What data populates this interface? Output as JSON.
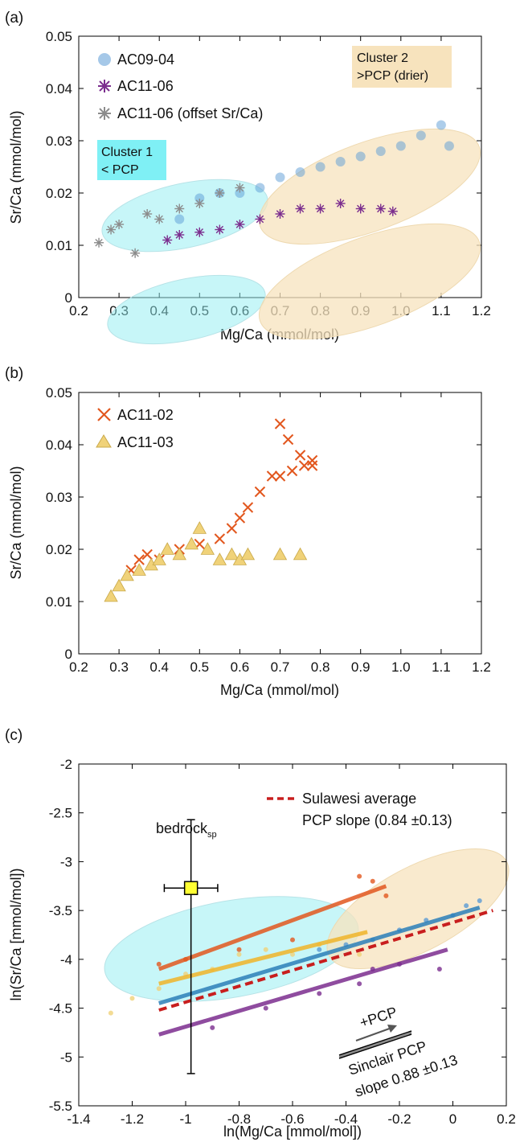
{
  "panels": [
    {
      "panel_label": "(a)",
      "type": "scatter",
      "xlabel": "Mg/Ca (mmol/mol)",
      "ylabel": "Sr/Ca (mmol/mol)",
      "xlim": [
        0.2,
        1.2
      ],
      "ylim": [
        0,
        0.05
      ],
      "xticks": [
        "0.2",
        "0.3",
        "0.4",
        "0.5",
        "0.6",
        "0.7",
        "0.8",
        "0.9",
        "1.0",
        "1.1",
        "1.2"
      ],
      "yticks": [
        "0",
        "0.01",
        "0.02",
        "0.03",
        "0.04",
        "0.05"
      ],
      "series": [
        {
          "name": "AC09-04",
          "marker": "circle",
          "color": "#5b9bd5",
          "x": [
            0.45,
            0.5,
            0.55,
            0.6,
            0.65,
            0.7,
            0.75,
            0.8,
            0.85,
            0.9,
            0.95,
            1.0,
            1.05,
            1.1,
            1.12
          ],
          "y": [
            0.015,
            0.019,
            0.02,
            0.02,
            0.021,
            0.023,
            0.024,
            0.025,
            0.026,
            0.027,
            0.028,
            0.029,
            0.031,
            0.033,
            0.029
          ]
        },
        {
          "name": "AC11-06",
          "marker": "asterisk",
          "color": "#7b2d8e",
          "x": [
            0.42,
            0.45,
            0.5,
            0.55,
            0.6,
            0.65,
            0.7,
            0.75,
            0.8,
            0.85,
            0.9,
            0.95,
            0.98
          ],
          "y": [
            0.011,
            0.012,
            0.0125,
            0.013,
            0.014,
            0.015,
            0.016,
            0.017,
            0.017,
            0.018,
            0.017,
            0.017,
            0.0165
          ]
        },
        {
          "name": "AC11-06 (offset Sr/Ca)",
          "marker": "asterisk",
          "color": "#8c8c8c",
          "x": [
            0.25,
            0.28,
            0.3,
            0.34,
            0.37,
            0.4,
            0.45,
            0.5,
            0.55,
            0.6
          ],
          "y": [
            0.0105,
            0.013,
            0.014,
            0.0085,
            0.016,
            0.015,
            0.017,
            0.018,
            0.02,
            0.021
          ]
        }
      ],
      "clusters": [
        {
          "name": "Cluster 1",
          "note": "< PCP",
          "color": "#7fe3ea"
        },
        {
          "name": "Cluster 2",
          "note": ">PCP (drier)",
          "color": "#f5deb3"
        }
      ]
    },
    {
      "panel_label": "(b)",
      "type": "scatter",
      "xlabel": "Mg/Ca (mmol/mol)",
      "ylabel": "Sr/Ca (mmol/mol)",
      "xlim": [
        0.2,
        1.2
      ],
      "ylim": [
        0,
        0.05
      ],
      "xticks": [
        "0.2",
        "0.3",
        "0.4",
        "0.5",
        "0.6",
        "0.7",
        "0.8",
        "0.9",
        "1.0",
        "1.1",
        "1.2"
      ],
      "yticks": [
        "0",
        "0.01",
        "0.02",
        "0.03",
        "0.04",
        "0.05"
      ],
      "series": [
        {
          "name": "AC11-02",
          "marker": "x",
          "color": "#e2571e",
          "x": [
            0.33,
            0.35,
            0.37,
            0.4,
            0.45,
            0.5,
            0.55,
            0.58,
            0.6,
            0.62,
            0.65,
            0.68,
            0.7,
            0.72,
            0.75,
            0.78,
            0.7,
            0.73,
            0.76,
            0.78
          ],
          "y": [
            0.016,
            0.018,
            0.019,
            0.018,
            0.02,
            0.021,
            0.022,
            0.024,
            0.026,
            0.028,
            0.031,
            0.034,
            0.044,
            0.041,
            0.038,
            0.036,
            0.034,
            0.035,
            0.036,
            0.037
          ]
        },
        {
          "name": "AC11-03",
          "marker": "triangle",
          "color": "#f0d279",
          "x": [
            0.28,
            0.3,
            0.32,
            0.35,
            0.38,
            0.4,
            0.42,
            0.45,
            0.48,
            0.5,
            0.52,
            0.55,
            0.58,
            0.6,
            0.62,
            0.7,
            0.75
          ],
          "y": [
            0.011,
            0.013,
            0.015,
            0.016,
            0.017,
            0.018,
            0.02,
            0.019,
            0.021,
            0.024,
            0.02,
            0.018,
            0.019,
            0.018,
            0.019,
            0.019,
            0.019
          ]
        }
      ]
    },
    {
      "panel_label": "(c)",
      "type": "scatter",
      "xlabel": "ln(Mg/Ca [mmol/mol])",
      "ylabel": "ln(Sr/Ca [mmol/mol])",
      "xlim": [
        -1.4,
        0.2
      ],
      "ylim": [
        -5.5,
        -2
      ],
      "xticks": [
        "-1.4",
        "-1.2",
        "-1",
        "-0.8",
        "-0.6",
        "-0.4",
        "-0.2",
        "0",
        "0.2"
      ],
      "yticks": [
        "-5.5",
        "-5",
        "-4.5",
        "-4",
        "-3.5",
        "-3",
        "-2.5",
        "-2"
      ],
      "bedrock": {
        "label": "bedrock",
        "subscript": "sp",
        "x": -0.98,
        "y": -3.27,
        "xerr": 0.1,
        "yerr_low": 1.9,
        "yerr_high": 0.7
      },
      "legend": {
        "line1": "Sulawesi average",
        "line2": "PCP slope (0.84 ±0.13)"
      },
      "sulawesi_line": {
        "x": [
          -1.1,
          0.15
        ],
        "y": [
          -4.52,
          -3.5
        ]
      },
      "arrow_label": "+PCP",
      "sinclair": {
        "line1": "Sinclair PCP",
        "line2": "slope 0.88 ±0.13"
      },
      "fits": [
        {
          "color": "#e2571e",
          "x": [
            -1.1,
            -0.25
          ],
          "y": [
            -4.1,
            -3.25
          ]
        },
        {
          "color": "#f0b429",
          "x": [
            -1.1,
            -0.32
          ],
          "y": [
            -4.25,
            -3.72
          ]
        },
        {
          "color": "#2c7fb8",
          "x": [
            -1.1,
            0.1
          ],
          "y": [
            -4.45,
            -3.47
          ]
        },
        {
          "color": "#7b2d8e",
          "x": [
            -1.1,
            -0.02
          ],
          "y": [
            -4.77,
            -3.9
          ]
        }
      ],
      "series": [
        {
          "name": "AC09-04",
          "color": "#5b9bd5",
          "x": [
            -0.5,
            -0.4,
            -0.3,
            -0.2,
            -0.1,
            0,
            0.05,
            0.1
          ],
          "y": [
            -3.9,
            -3.85,
            -3.8,
            -3.7,
            -3.6,
            -3.55,
            -3.45,
            -3.4
          ]
        },
        {
          "name": "AC11-06",
          "color": "#7b2d8e",
          "x": [
            -0.9,
            -0.7,
            -0.5,
            -0.35,
            -0.3,
            -0.2,
            -0.05
          ],
          "y": [
            -4.7,
            -4.5,
            -4.35,
            -4.25,
            -4.1,
            -4.05,
            -4.1
          ]
        },
        {
          "name": "AC11-02",
          "color": "#e2571e",
          "x": [
            -1.1,
            -1.0,
            -0.8,
            -0.6,
            -0.35,
            -0.3,
            -0.25
          ],
          "y": [
            -4.05,
            -4.0,
            -3.9,
            -3.8,
            -3.15,
            -3.2,
            -3.35
          ]
        },
        {
          "name": "AC11-03",
          "color": "#f0d279",
          "x": [
            -1.28,
            -1.2,
            -1.1,
            -1.0,
            -0.9,
            -0.8,
            -0.7,
            -0.6,
            -0.5,
            -0.35
          ],
          "y": [
            -4.55,
            -4.4,
            -4.3,
            -4.15,
            -4.1,
            -3.95,
            -3.9,
            -3.95,
            -3.85,
            -3.95
          ]
        }
      ]
    }
  ]
}
